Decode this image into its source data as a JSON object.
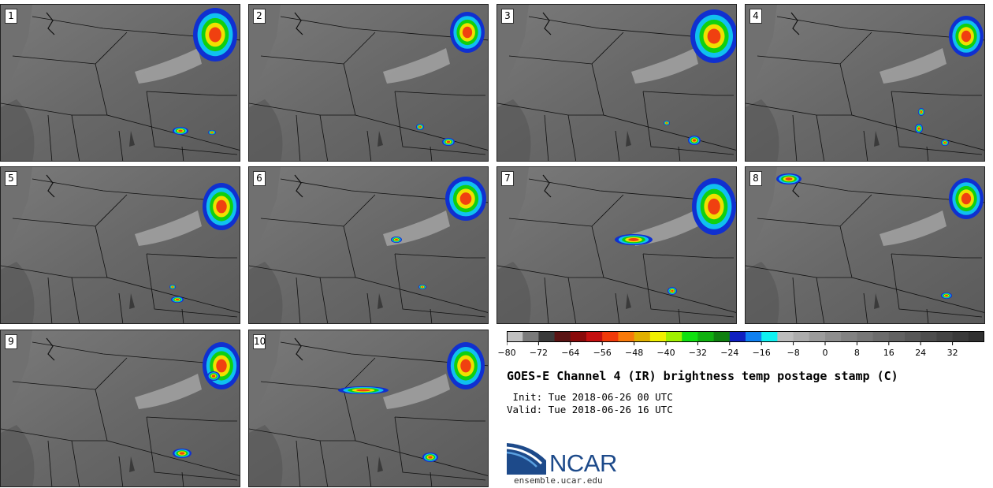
{
  "panels": [
    {
      "label": "1"
    },
    {
      "label": "2"
    },
    {
      "label": "3"
    },
    {
      "label": "4"
    },
    {
      "label": "5"
    },
    {
      "label": "6"
    },
    {
      "label": "7"
    },
    {
      "label": "8"
    },
    {
      "label": "9"
    },
    {
      "label": "10"
    }
  ],
  "colorbar": {
    "colors": [
      "#c0c0c0",
      "#7a7a7a",
      "#3a3a3a",
      "#5a1414",
      "#8a0a0a",
      "#c41010",
      "#f03a0a",
      "#f87a0a",
      "#e0b000",
      "#f0f000",
      "#a0f000",
      "#10e010",
      "#10b010",
      "#108010",
      "#1020c0",
      "#1080f0",
      "#10f0f0",
      "#bcbcbc",
      "#acacac",
      "#9c9c9c",
      "#8e8e8e",
      "#828282",
      "#777777",
      "#6c6c6c",
      "#626262",
      "#585858",
      "#4e4e4e",
      "#444444",
      "#3a3a3a",
      "#303030"
    ],
    "tick_labels": [
      "−80",
      "−72",
      "−64",
      "−56",
      "−48",
      "−40",
      "−32",
      "−24",
      "−16",
      "−8",
      "0",
      "8",
      "16",
      "24",
      "32"
    ]
  },
  "title": "GOES-E Channel 4 (IR) brightness temp postage stamp (C)",
  "init": " Init: Tue 2018-06-26 00 UTC",
  "valid": "Valid: Tue 2018-06-26 16 UTC",
  "logo": {
    "text": "NCAR",
    "url": "ensemble.ucar.edu",
    "color": "#1d4a8a"
  }
}
